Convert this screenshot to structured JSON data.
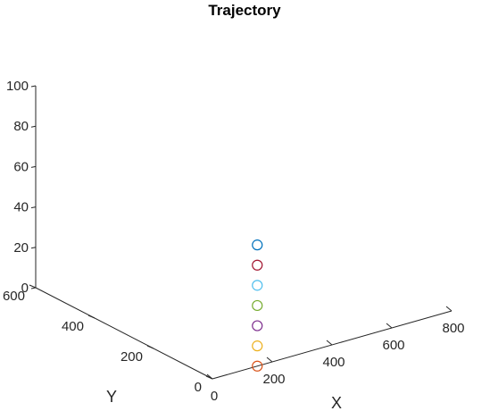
{
  "chart_data": {
    "type": "scatter",
    "title": "Trajectory",
    "xlabel": "X",
    "ylabel": "Y",
    "zlabel": "",
    "xlim": [
      0,
      800
    ],
    "ylim": [
      0,
      600
    ],
    "zlim": [
      0,
      100
    ],
    "xticks": [
      "0",
      "200",
      "400",
      "600",
      "800"
    ],
    "yticks": [
      "0",
      "200",
      "400",
      "600"
    ],
    "zticks": [
      "0",
      "20",
      "40",
      "60",
      "80",
      "100"
    ],
    "grid": false,
    "points": [
      {
        "x": 150,
        "y": 0,
        "z": 0,
        "color": "#D95319"
      },
      {
        "x": 150,
        "y": 0,
        "z": 10,
        "color": "#EDB120"
      },
      {
        "x": 150,
        "y": 0,
        "z": 20,
        "color": "#7E2F8E"
      },
      {
        "x": 150,
        "y": 0,
        "z": 30,
        "color": "#77AC30"
      },
      {
        "x": 150,
        "y": 0,
        "z": 40,
        "color": "#4DBEEE"
      },
      {
        "x": 150,
        "y": 0,
        "z": 50,
        "color": "#A2142F"
      },
      {
        "x": 150,
        "y": 0,
        "z": 60,
        "color": "#0072BD"
      }
    ]
  }
}
